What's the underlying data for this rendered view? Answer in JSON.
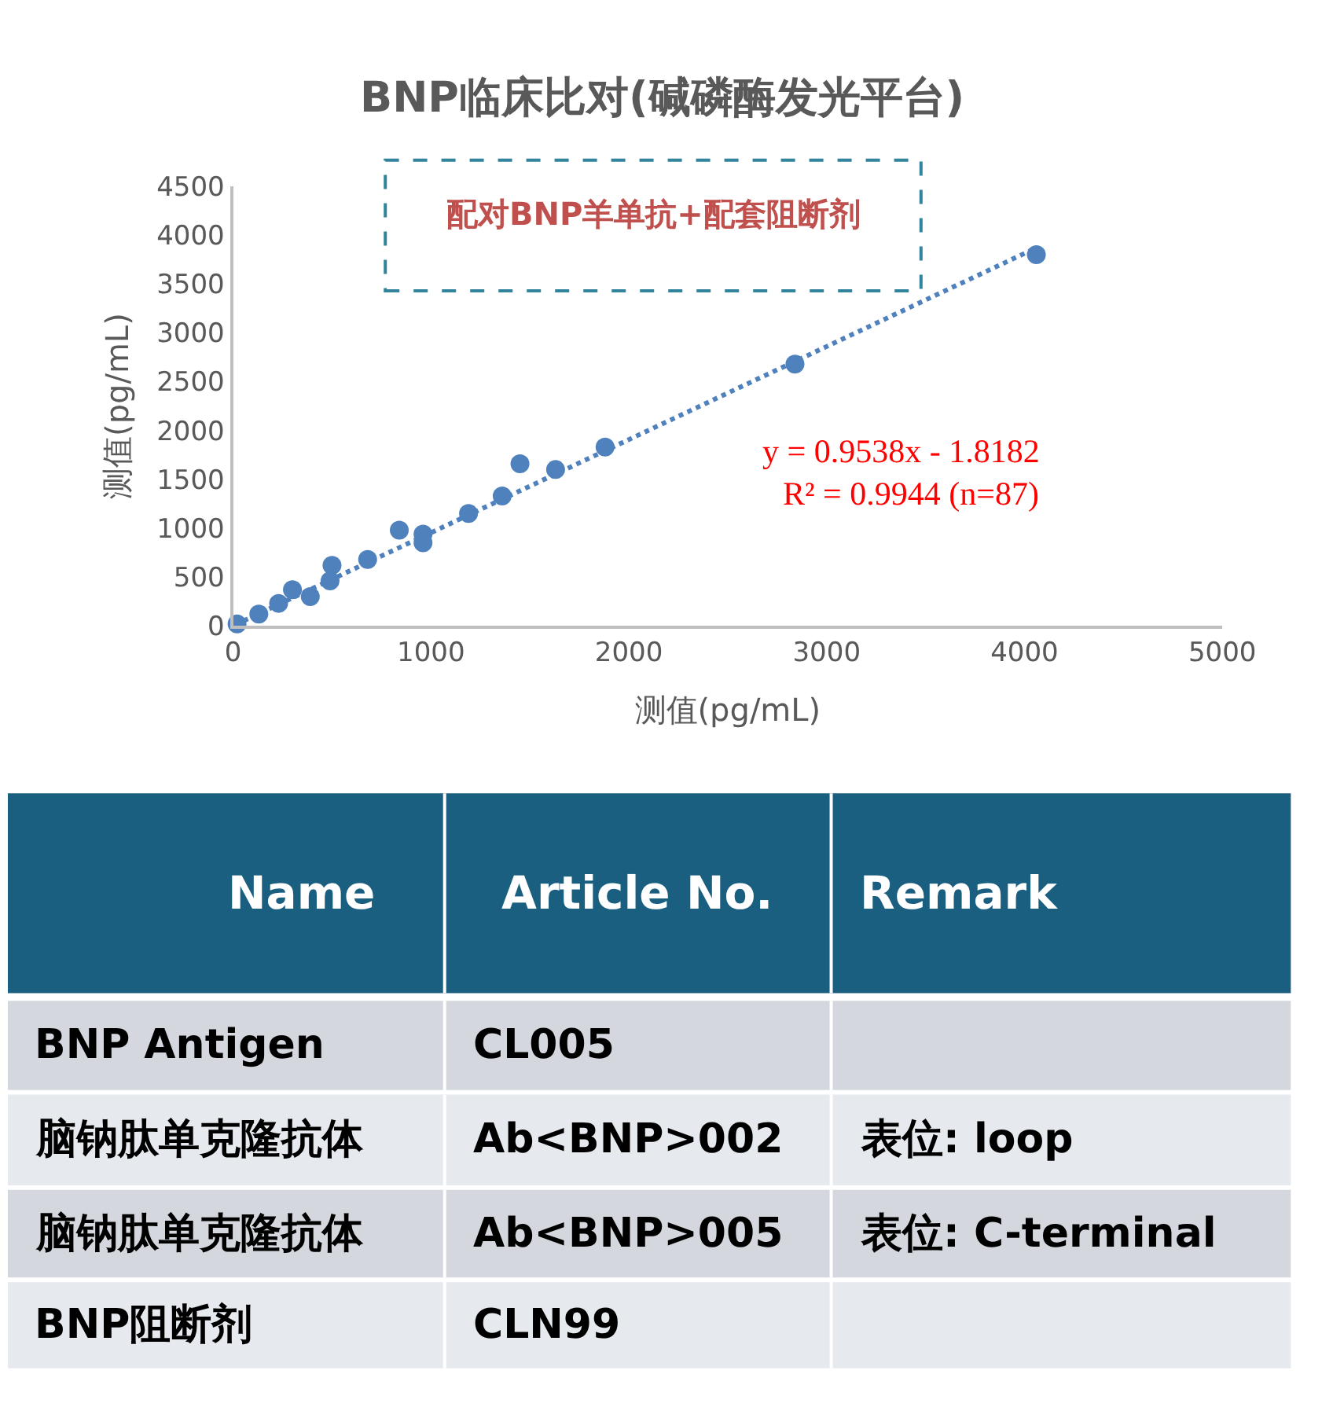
{
  "chart_data": [
    {
      "type": "scatter",
      "title": "BNP临床比对(碱磷酶发光平台)",
      "xlabel": "测值(pg/mL)",
      "ylabel": "测值(pg/mL)",
      "annotations": [
        "配对BNP羊单抗+配套阻断剂",
        "y = 0.9538x - 1.8182",
        "R² = 0.9944 (n=87)"
      ],
      "xlim": [
        0,
        5000
      ],
      "xticks": [
        0,
        1000,
        2000,
        3000,
        4000,
        5000
      ],
      "ylim": [
        0,
        4500
      ],
      "yticks": [
        0,
        500,
        1000,
        1500,
        2000,
        2500,
        3000,
        3500,
        4000,
        4500
      ],
      "marker": "circle",
      "series": [
        {
          "color": "#4f81bd",
          "x": [
            20,
            130,
            230,
            300,
            390,
            490,
            500,
            680,
            840,
            960,
            960,
            1190,
            1360,
            1450,
            1630,
            1880,
            2840,
            4060
          ],
          "values": [
            20,
            120,
            230,
            370,
            300,
            460,
            620,
            680,
            980,
            940,
            850,
            1150,
            1330,
            1660,
            1600,
            1830,
            2680,
            3800
          ]
        },
        {
          "type": "line",
          "line_style": "dotted",
          "marker": "none",
          "color": "#4f81bd",
          "x": [
            10,
            4060
          ],
          "values": [
            10,
            3870
          ]
        }
      ]
    },
    {
      "type": "other",
      "annotations": [
        "Name",
        "Article No.",
        "Remark",
        "BNP Antigen",
        "CL005",
        null,
        "脑钠肽单克隆抗体",
        "Ab<BNP>002",
        "表位: loop",
        "脑钠肽单克隆抗体",
        "Ab<BNP>005",
        "表位: C-terminal",
        "BNP阻断剂",
        "CLN99",
        null
      ]
    }
  ]
}
